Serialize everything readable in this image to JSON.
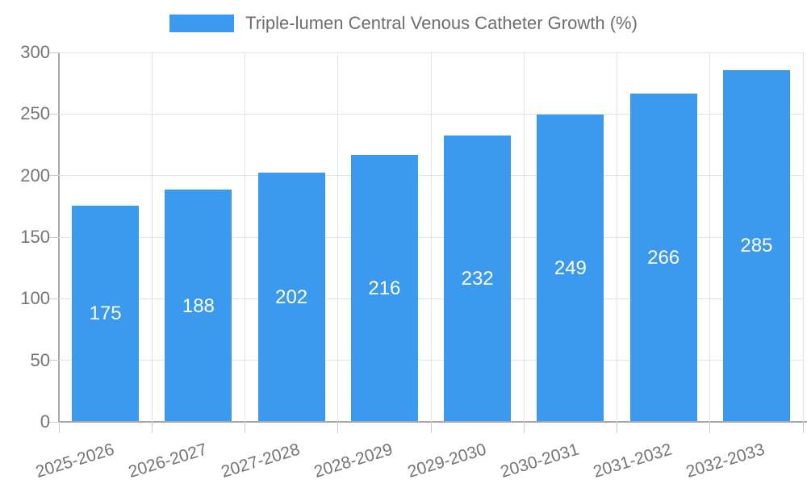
{
  "chart_data": {
    "type": "bar",
    "title": "Triple-lumen Central Venous Catheter Growth (%)",
    "series_label": "Triple-lumen Central Venous Catheter Growth (%)",
    "categories": [
      "2025-2026",
      "2026-2027",
      "2027-2028",
      "2028-2029",
      "2029-2030",
      "2030-2031",
      "2031-2032",
      "2032-2033"
    ],
    "values": [
      175,
      188,
      202,
      216,
      232,
      249,
      266,
      285
    ],
    "xlabel": "",
    "ylabel": "",
    "ylim": [
      0,
      300
    ],
    "ytick_step": 50,
    "y_tick_labels": [
      "0",
      "50",
      "100",
      "150",
      "200",
      "250",
      "300"
    ],
    "grid": true,
    "legend_position": "top-center",
    "bar_value_labels": "centered-white"
  },
  "colors": {
    "bar": "#3b99ee",
    "bar_label_text": "#ffffff",
    "legend_text": "#6e6e6e",
    "axis_tick_text": "#757575",
    "gridline": "#e3e3e3",
    "axis_line": "#a8a8a8",
    "tick_mark": "#cccccc",
    "background": "#ffffff"
  }
}
